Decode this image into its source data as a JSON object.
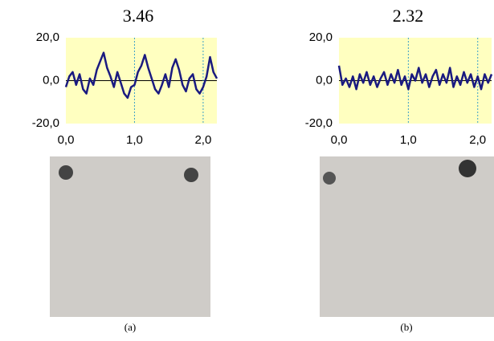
{
  "chart_data": [
    {
      "type": "line",
      "title": "3.46",
      "caption": "(a)",
      "x": [
        0,
        0.05,
        0.1,
        0.15,
        0.2,
        0.25,
        0.3,
        0.35,
        0.4,
        0.45,
        0.5,
        0.55,
        0.6,
        0.65,
        0.7,
        0.75,
        0.8,
        0.85,
        0.9,
        0.95,
        1.0,
        1.05,
        1.1,
        1.15,
        1.2,
        1.25,
        1.3,
        1.35,
        1.4,
        1.45,
        1.5,
        1.55,
        1.6,
        1.65,
        1.7,
        1.75,
        1.8,
        1.85,
        1.9,
        1.95,
        2.0,
        2.05,
        2.1,
        2.15,
        2.2
      ],
      "series": [
        {
          "color": "#1a1a80",
          "values": [
            -3,
            2,
            4,
            -2,
            3,
            -4,
            -6,
            1,
            -2,
            5,
            9,
            13,
            6,
            2,
            -3,
            4,
            -1,
            -6,
            -8,
            -3,
            -2,
            4,
            7,
            12,
            6,
            1,
            -4,
            -6,
            -2,
            3,
            -3,
            6,
            10,
            5,
            -2,
            -5,
            1,
            3,
            -4,
            -6,
            -3,
            2,
            11,
            4,
            1
          ]
        }
      ],
      "xlim": [
        0,
        2.2
      ],
      "ylim": [
        -20,
        20
      ],
      "xticks": [
        {
          "value": 0,
          "label": "0,0"
        },
        {
          "value": 1,
          "label": "1,0"
        },
        {
          "value": 2,
          "label": "2,0"
        }
      ],
      "yticks": [
        {
          "value": 20,
          "label": "20,0"
        },
        {
          "value": 0,
          "label": "0,0"
        },
        {
          "value": -20,
          "label": "-20,0"
        }
      ],
      "grid": true,
      "background": "#ffffc0"
    },
    {
      "type": "line",
      "title": "2.32",
      "caption": "(b)",
      "x": [
        0,
        0.05,
        0.1,
        0.15,
        0.2,
        0.25,
        0.3,
        0.35,
        0.4,
        0.45,
        0.5,
        0.55,
        0.6,
        0.65,
        0.7,
        0.75,
        0.8,
        0.85,
        0.9,
        0.95,
        1.0,
        1.05,
        1.1,
        1.15,
        1.2,
        1.25,
        1.3,
        1.35,
        1.4,
        1.45,
        1.5,
        1.55,
        1.6,
        1.65,
        1.7,
        1.75,
        1.8,
        1.85,
        1.9,
        1.95,
        2.0,
        2.05,
        2.1,
        2.15,
        2.2
      ],
      "series": [
        {
          "color": "#1a1a80",
          "values": [
            7,
            -2,
            1,
            -3,
            2,
            -4,
            3,
            -1,
            4,
            -2,
            2,
            -3,
            1,
            4,
            -2,
            3,
            -1,
            5,
            -2,
            2,
            -4,
            3,
            0,
            6,
            -1,
            3,
            -3,
            2,
            5,
            -2,
            3,
            -1,
            6,
            -3,
            2,
            -2,
            4,
            -1,
            3,
            -3,
            2,
            -4,
            3,
            -1,
            3
          ]
        }
      ],
      "xlim": [
        0,
        2.2
      ],
      "ylim": [
        -20,
        20
      ],
      "xticks": [
        {
          "value": 0,
          "label": "0,0"
        },
        {
          "value": 1,
          "label": "1,0"
        },
        {
          "value": 2,
          "label": "2,0"
        }
      ],
      "yticks": [
        {
          "value": 20,
          "label": "20,0"
        },
        {
          "value": 0,
          "label": "0,0"
        },
        {
          "value": -20,
          "label": "-20,0"
        }
      ],
      "grid": true,
      "background": "#ffffc0"
    }
  ]
}
